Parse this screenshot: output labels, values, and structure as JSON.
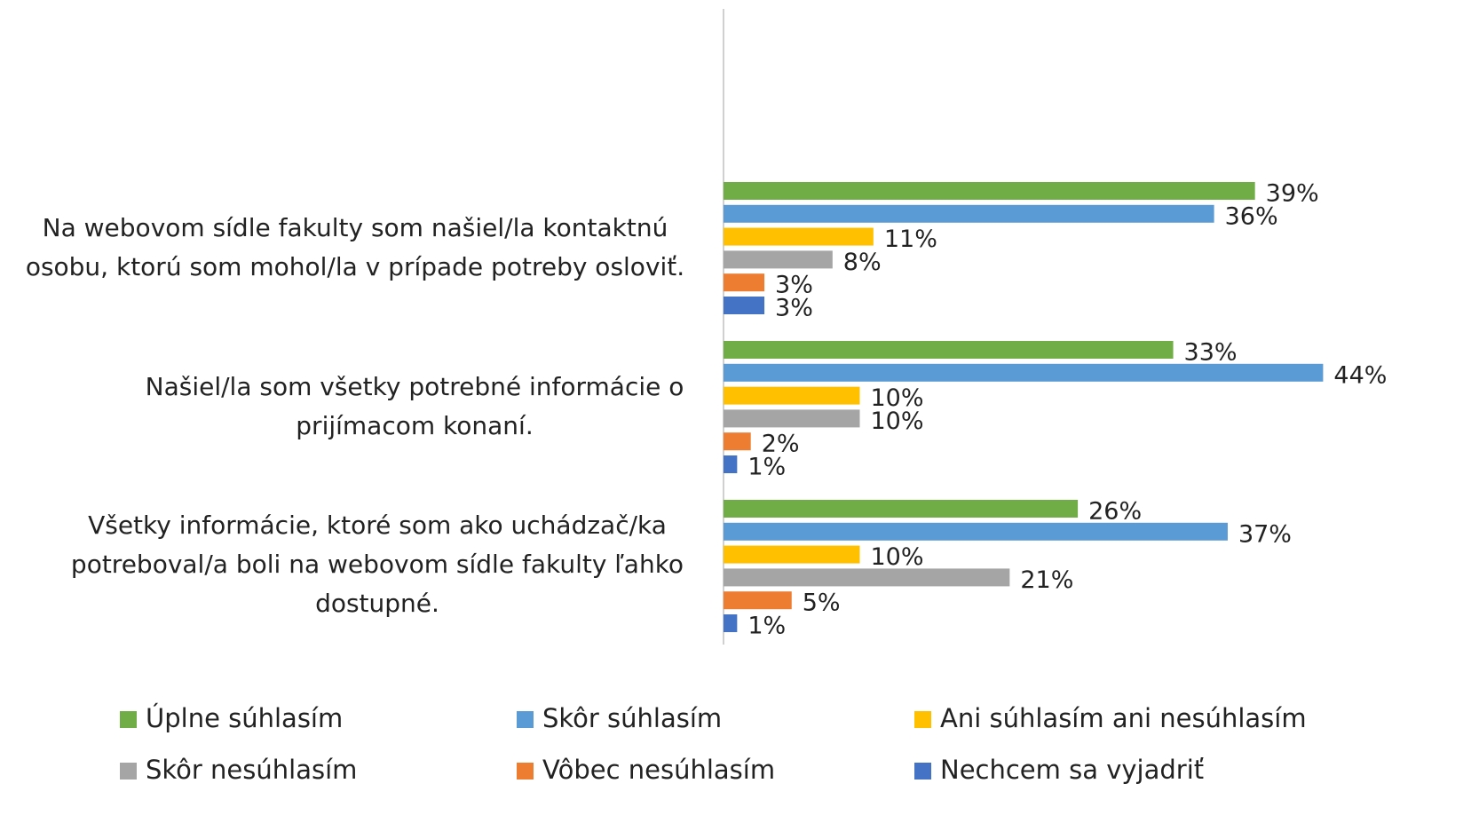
{
  "chart_data": {
    "type": "bar",
    "orientation": "horizontal",
    "categories": [
      "Na webovom sídle fakulty som našiel/la kontaktnú osobu, ktorú som mohol/la v prípade potreby osloviť.",
      "Našiel/la som všetky potrebné informácie o prijímacom konaní.",
      "Všetky informácie, ktoré som ako uchádzač/ka potreboval/a boli na webovom sídle fakulty ľahko dostupné."
    ],
    "series": [
      {
        "name": "Úplne súhlasím",
        "color": "#70ad47",
        "values": [
          39,
          33,
          26
        ],
        "value_labels": [
          "39%",
          "33%",
          "26%"
        ]
      },
      {
        "name": "Skôr súhlasím",
        "color": "#5b9bd5",
        "values": [
          36,
          44,
          37
        ],
        "value_labels": [
          "36%",
          "44%",
          "37%"
        ]
      },
      {
        "name": "Ani súhlasím ani nesúhlasím",
        "color": "#ffc000",
        "values": [
          11,
          10,
          10
        ],
        "value_labels": [
          "11%",
          "10%",
          "10%"
        ]
      },
      {
        "name": "Skôr nesúhlasím",
        "color": "#a5a5a5",
        "values": [
          8,
          10,
          21
        ],
        "value_labels": [
          "8%",
          "10%",
          "21%"
        ]
      },
      {
        "name": "Vôbec nesúhlasím",
        "color": "#ed7d31",
        "values": [
          3,
          2,
          5
        ],
        "value_labels": [
          "3%",
          "2%",
          "5%"
        ]
      },
      {
        "name": "Nechcem sa vyjadriť",
        "color": "#4472c4",
        "values": [
          3,
          1,
          1
        ],
        "value_labels": [
          "3%",
          "1%",
          "1%"
        ]
      }
    ],
    "legend": "bottom"
  }
}
